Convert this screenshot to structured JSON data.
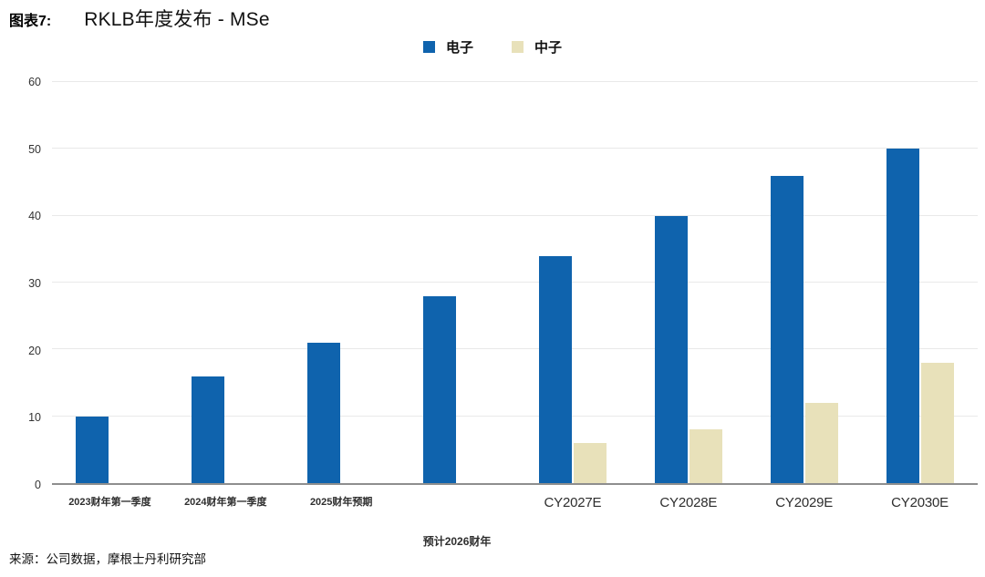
{
  "header": {
    "figure_label": "图表7:"
  },
  "chart_data": {
    "type": "bar",
    "title": "RKLB年度发布 - MSe",
    "categories": [
      "2023财年第一季度",
      "2024财年第一季度",
      "2025财年预期",
      "预计2026财年",
      "CY2027E",
      "CY2028E",
      "CY2029E",
      "CY2030E"
    ],
    "series": [
      {
        "name": "电子",
        "color": "#0f63ad",
        "values": [
          10,
          16,
          21,
          28,
          34,
          40,
          46,
          50
        ]
      },
      {
        "name": "中子",
        "color": "#e8e1ba",
        "values": [
          null,
          null,
          null,
          null,
          6,
          8,
          12,
          18
        ]
      }
    ],
    "xlabel": "",
    "ylabel": "",
    "ylim": [
      0,
      60
    ],
    "yticks": [
      0,
      10,
      20,
      30,
      40,
      50,
      60
    ],
    "grid": true,
    "legend_position": "top-center",
    "x_labels": [
      {
        "text": "2023财年第一季度",
        "style": "small",
        "row": 1
      },
      {
        "text": "2024财年第一季度",
        "style": "small",
        "row": 1
      },
      {
        "text": "2025财年预期",
        "style": "small",
        "row": 1
      },
      {
        "text": "预计2026财年",
        "style": "small",
        "row": 2
      },
      {
        "text": "CY2027E",
        "style": "large",
        "row": 1
      },
      {
        "text": "CY2028E",
        "style": "large",
        "row": 1
      },
      {
        "text": "CY2029E",
        "style": "large",
        "row": 1
      },
      {
        "text": "CY2030E",
        "style": "large",
        "row": 1
      }
    ]
  },
  "footer": {
    "source": "来源：公司数据，摩根士丹利研究部"
  }
}
